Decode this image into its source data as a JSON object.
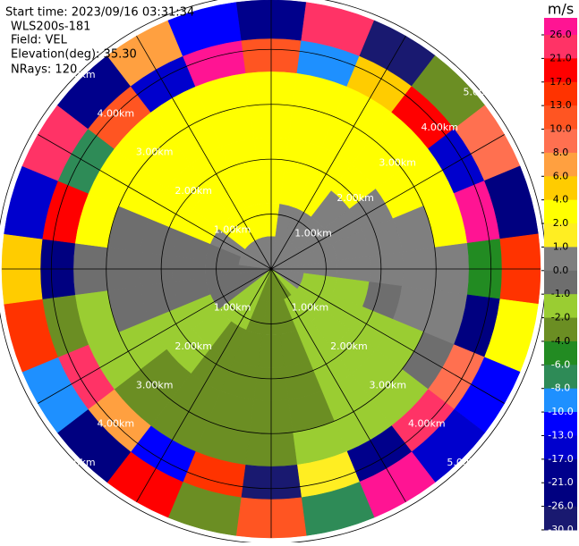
{
  "chart_data": {
    "type": "ppi",
    "header": [
      "Start time: 2023/09/16 03:31:34",
      "WLS200s-181",
      "Field: VEL",
      "Elevation(deg): 35.30",
      "NRays: 120"
    ],
    "azimuths": [
      0,
      15,
      30,
      45,
      60,
      75,
      90,
      105,
      120,
      135,
      150,
      165,
      180,
      195,
      210,
      225,
      240,
      255,
      270,
      285,
      300,
      315,
      330,
      345
    ],
    "gates": [
      0,
      0.6,
      1.2,
      1.8,
      2.4,
      3.0,
      3.6,
      4.2,
      4.9
    ],
    "rlim": [
      0,
      4.9
    ],
    "values": [
      [
        0,
        3,
        3,
        3,
        3,
        3,
        12,
        -18
      ],
      [
        0,
        0.5,
        3,
        3,
        3,
        3,
        -9,
        24
      ],
      [
        0,
        0.5,
        3,
        3,
        3,
        3,
        5,
        -27
      ],
      [
        0,
        0.5,
        0.5,
        3,
        3,
        3,
        19,
        -3
      ],
      [
        0,
        0.5,
        0.5,
        0.5,
        3,
        3,
        -14,
        8
      ],
      [
        0,
        0.5,
        0.5,
        0.5,
        0.5,
        3,
        27,
        -22
      ],
      [
        0,
        0,
        0.5,
        0.5,
        0.5,
        0.5,
        -6,
        15
      ],
      [
        0,
        -1.5,
        -1.5,
        -0.5,
        0.5,
        0.5,
        -24,
        3
      ],
      [
        0,
        -1.5,
        -1.5,
        -1.5,
        -1.5,
        -0.5,
        9,
        -11
      ],
      [
        -1.5,
        -1.5,
        -1.5,
        -1.5,
        -1.5,
        -1.5,
        22,
        -16
      ],
      [
        -3,
        -1.5,
        -1.5,
        -1.5,
        -1.5,
        -1.5,
        -19,
        28
      ],
      [
        -3,
        -3,
        -3,
        -3,
        -3,
        -1.5,
        1.5,
        -7
      ],
      [
        -3,
        -3,
        -3,
        -3,
        -3,
        -3,
        -28,
        11
      ],
      [
        -3,
        -3,
        -3,
        -3,
        -3,
        -3,
        14,
        -2.5
      ],
      [
        -1.5,
        -1.5,
        -3,
        -3,
        -3,
        -3,
        -12,
        20
      ],
      [
        -1.5,
        -1.5,
        -1.5,
        -1.5,
        -3,
        -3,
        7,
        -25
      ],
      [
        -0.5,
        -0.5,
        -1.5,
        -1.5,
        -1.5,
        -1.5,
        25,
        -9
      ],
      [
        -0.5,
        -0.5,
        -0.5,
        -0.5,
        -0.5,
        -1.5,
        -3,
        16
      ],
      [
        -0.5,
        -0.5,
        -0.5,
        -0.5,
        -0.5,
        -0.5,
        -22,
        4.5
      ],
      [
        0.5,
        -0.5,
        -0.5,
        -0.5,
        -0.5,
        3,
        18,
        -14
      ],
      [
        0.5,
        0.5,
        3,
        3,
        3,
        3,
        -8,
        23
      ],
      [
        0.5,
        3,
        3,
        3,
        3,
        3,
        11,
        -20
      ],
      [
        0.5,
        3,
        3,
        3,
        3,
        3,
        -17,
        6.5
      ],
      [
        0,
        3,
        3,
        3,
        3,
        3,
        29,
        -12
      ]
    ],
    "range_rings": [
      {
        "value": 1,
        "label": "1.00km"
      },
      {
        "value": 2,
        "label": "2.00km"
      },
      {
        "value": 3,
        "label": "3.00km"
      },
      {
        "value": 4,
        "label": "4.00km"
      },
      {
        "value": 5,
        "label": "5.00km"
      }
    ],
    "spokes": [
      0,
      30,
      60,
      90,
      120,
      150
    ],
    "colorbar": {
      "label": "m/s",
      "over_color": "#ff1493",
      "ticks": [
        {
          "value": 26,
          "label": "26.0"
        },
        {
          "value": 21,
          "label": "21.0"
        },
        {
          "value": 17,
          "label": "17.0"
        },
        {
          "value": 13,
          "label": "13.0"
        },
        {
          "value": 10,
          "label": "10.0"
        },
        {
          "value": 8,
          "label": "8.0"
        },
        {
          "value": 6,
          "label": "6.0"
        },
        {
          "value": 4,
          "label": "4.0"
        },
        {
          "value": 2,
          "label": "2.0"
        },
        {
          "value": 1,
          "label": "1.0"
        },
        {
          "value": 0,
          "label": "0.0"
        },
        {
          "value": -1,
          "label": "-1.0"
        },
        {
          "value": -2,
          "label": "-2.0"
        },
        {
          "value": -4,
          "label": "-4.0"
        },
        {
          "value": -6,
          "label": "-6.0"
        },
        {
          "value": -8,
          "label": "-8.0"
        },
        {
          "value": -10,
          "label": "-10.0"
        },
        {
          "value": -13,
          "label": "-13.0"
        },
        {
          "value": -17,
          "label": "-17.0"
        },
        {
          "value": -21,
          "label": "-21.0"
        },
        {
          "value": -26,
          "label": "-26.0"
        },
        {
          "value": -30,
          "label": "-30.0"
        }
      ],
      "colors": [
        "#ff3366",
        "#ff0000",
        "#ff3300",
        "#ff5522",
        "#ff7050",
        "#ffa040",
        "#ffcc00",
        "#ffff00",
        "#ffee22",
        "#7f7f7f",
        "#6e6e6e",
        "#9acd32",
        "#6b8e23",
        "#228b22",
        "#2e8b57",
        "#1e90ff",
        "#0000ff",
        "#0000cd",
        "#00008b",
        "#000080",
        "#191970"
      ]
    }
  }
}
